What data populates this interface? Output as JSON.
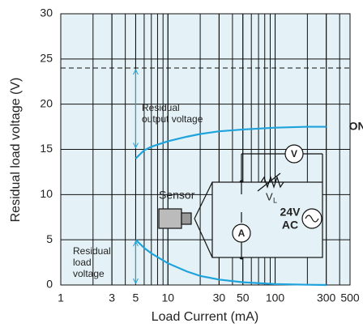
{
  "chart_data": {
    "type": "line",
    "xlabel": "Load Current (mA)",
    "ylabel": "Residual load voltage (V)",
    "xscale": "log",
    "xlim": [
      1,
      500
    ],
    "ylim": [
      0,
      30
    ],
    "xticks": [
      1,
      3,
      5,
      10,
      30,
      50,
      100,
      300,
      500
    ],
    "yticks": [
      0,
      5,
      10,
      15,
      20,
      25,
      30
    ],
    "grid": true,
    "reference_line": 24,
    "series": [
      {
        "name": "ON",
        "color": "#1fa3dc",
        "x": [
          5,
          6,
          7,
          10,
          15,
          20,
          30,
          50,
          100,
          200,
          300
        ],
        "values": [
          14,
          14.9,
          15.3,
          15.9,
          16.4,
          16.7,
          17,
          17.2,
          17.4,
          17.5,
          17.5
        ]
      },
      {
        "color": "#1fa3dc",
        "x": [
          5,
          6,
          7,
          10,
          15,
          20,
          30,
          50,
          100,
          200,
          300
        ],
        "values": [
          5,
          4.1,
          3.5,
          2.4,
          1.5,
          1,
          0.6,
          0.3,
          0.1,
          0.03,
          0
        ]
      }
    ],
    "annotations": {
      "output_voltage": [
        "Residual",
        "output voltage"
      ],
      "load_voltage": [
        "Residual",
        "load",
        "voltage"
      ]
    },
    "circuit": {
      "sensor": "Sensor",
      "voltmeter": "V",
      "ammeter": "A",
      "load_main": "V",
      "load_sub": "L",
      "supply": [
        "24V",
        "AC"
      ]
    }
  }
}
